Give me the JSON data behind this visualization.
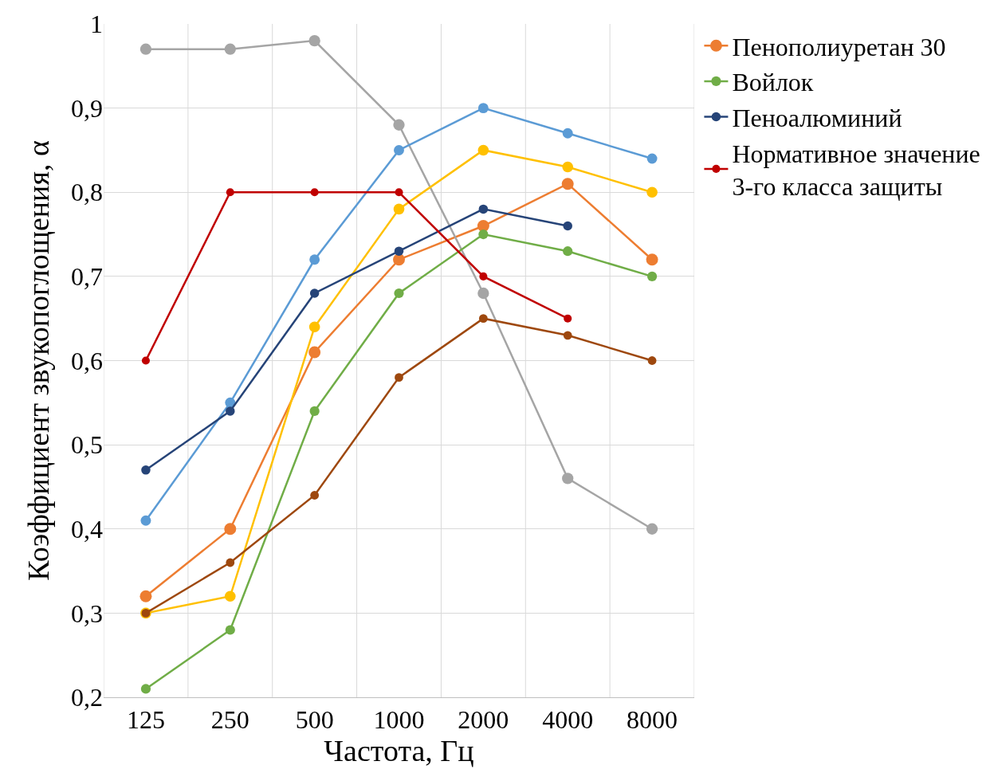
{
  "chart_data": {
    "type": "line",
    "xlabel": "Частота, Гц",
    "ylabel": "Коэффициент звукопоглощения, α",
    "categories": [
      "125",
      "250",
      "500",
      "1000",
      "2000",
      "4000",
      "8000"
    ],
    "ylim": [
      0.2,
      1
    ],
    "yticks": [
      {
        "value": 0.2,
        "label": "0,2"
      },
      {
        "value": 0.3,
        "label": "0,3"
      },
      {
        "value": 0.4,
        "label": "0,4"
      },
      {
        "value": 0.5,
        "label": "0,5"
      },
      {
        "value": 0.6,
        "label": "0,6"
      },
      {
        "value": 0.7,
        "label": "0,7"
      },
      {
        "value": 0.8,
        "label": "0,8"
      },
      {
        "value": 0.9,
        "label": "0,9"
      },
      {
        "value": 1,
        "label": "1"
      }
    ],
    "grid": true,
    "legend": "right",
    "marker": "circle",
    "line_style": "solid",
    "series": [
      {
        "name": "Пенополиуретан 30",
        "color": "#ed7d31",
        "values": [
          0.32,
          0.4,
          0.61,
          0.72,
          0.76,
          0.81,
          0.72
        ]
      },
      {
        "color": "#a5a5a5",
        "values": [
          0.97,
          0.97,
          0.98,
          0.88,
          0.68,
          0.46,
          0.4
        ]
      },
      {
        "color": "#ffc000",
        "values": [
          0.3,
          0.32,
          0.64,
          0.78,
          0.85,
          0.83,
          0.8
        ]
      },
      {
        "color": "#5b9bd5",
        "values": [
          0.41,
          0.55,
          0.72,
          0.85,
          0.9,
          0.87,
          0.84
        ]
      },
      {
        "name": "Войлок",
        "color": "#70ad47",
        "values": [
          0.21,
          0.28,
          0.54,
          0.68,
          0.75,
          0.73,
          0.7
        ]
      },
      {
        "name": "Пеноалюминий",
        "color": "#264478",
        "values": [
          0.47,
          0.54,
          0.68,
          0.73,
          0.78,
          0.76,
          null
        ]
      },
      {
        "color": "#9e480e",
        "values": [
          0.3,
          0.36,
          0.44,
          0.58,
          0.65,
          0.63,
          0.6
        ]
      },
      {
        "name": "Нормативное значение 3-го класса защиты",
        "color": "#c00000",
        "values": [
          0.6,
          0.8,
          0.8,
          0.8,
          0.7,
          0.65,
          null
        ]
      }
    ]
  }
}
